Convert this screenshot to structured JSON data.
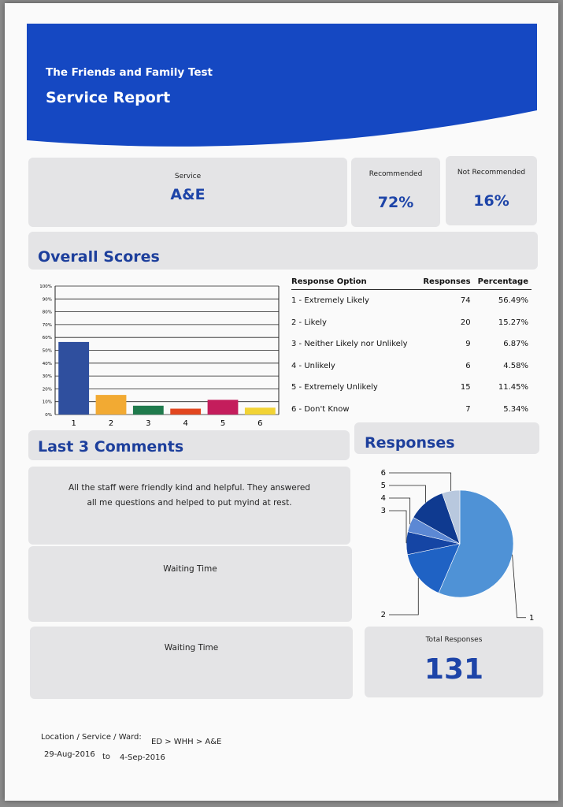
{
  "header": {
    "subtitle": "The Friends and Family Test",
    "title": "Service Report"
  },
  "summary": {
    "service_label": "Service",
    "service": "A&E",
    "recommended_label": "Recommended",
    "recommended": "72%",
    "not_recommended_label": "Not Recommended",
    "not_recommended": "16%"
  },
  "overall_heading": "Overall Scores",
  "table": {
    "columns": [
      "Response Option",
      "Responses",
      "Percentage"
    ],
    "rows": [
      [
        "1 - Extremely Likely",
        "74",
        "56.49%"
      ],
      [
        "2 - Likely",
        "20",
        "15.27%"
      ],
      [
        "3 - Neither Likely nor Unlikely",
        "9",
        "6.87%"
      ],
      [
        "4 - Unlikely",
        "6",
        "4.58%"
      ],
      [
        "5 - Extremely Unlikely",
        "15",
        "11.45%"
      ],
      [
        "6 - Don't Know",
        "7",
        "5.34%"
      ]
    ]
  },
  "comments": {
    "heading": "Last 3 Comments",
    "items": [
      "All the staff were friendly kind and helpful. They answered all me questions and helped to put myind at rest.",
      "Waiting Time",
      "Waiting Time"
    ]
  },
  "responses_heading": "Responses",
  "total": {
    "label": "Total Responses",
    "value": "131"
  },
  "footer": {
    "location_label": "Location / Service / Ward:",
    "location": "ED > WHH > A&E",
    "from": "29-Aug-2016",
    "to_label": "to",
    "to": "4-Sep-2016"
  },
  "chart_data": [
    {
      "type": "bar",
      "categories": [
        "1",
        "2",
        "3",
        "4",
        "5",
        "6"
      ],
      "values": [
        56.49,
        15.27,
        6.87,
        4.58,
        11.45,
        5.34
      ],
      "colors": [
        "#2f4f9e",
        "#f2aa33",
        "#1f7a4c",
        "#e2461f",
        "#c41d5c",
        "#f2d335"
      ],
      "ylim": [
        0,
        100
      ],
      "yticks": [
        {
          "value": 0,
          "label": "0%"
        },
        {
          "value": 10,
          "label": "10%"
        },
        {
          "value": 20,
          "label": "20%"
        },
        {
          "value": 30,
          "label": "30%"
        },
        {
          "value": 40,
          "label": "40%"
        },
        {
          "value": 50,
          "label": "50%"
        },
        {
          "value": 60,
          "label": "60%"
        },
        {
          "value": 70,
          "label": "70%"
        },
        {
          "value": 80,
          "label": "80%"
        },
        {
          "value": 90,
          "label": "90%"
        },
        {
          "value": 100,
          "label": "100%"
        }
      ],
      "grid": true
    },
    {
      "type": "pie",
      "categories": [
        "1",
        "2",
        "3",
        "4",
        "5",
        "6"
      ],
      "values": [
        74,
        20,
        9,
        6,
        15,
        7
      ],
      "colors": [
        "#4f92d6",
        "#1f62c4",
        "#1545a4",
        "#5c88d4",
        "#0f3a90",
        "#b8c8de"
      ]
    }
  ]
}
